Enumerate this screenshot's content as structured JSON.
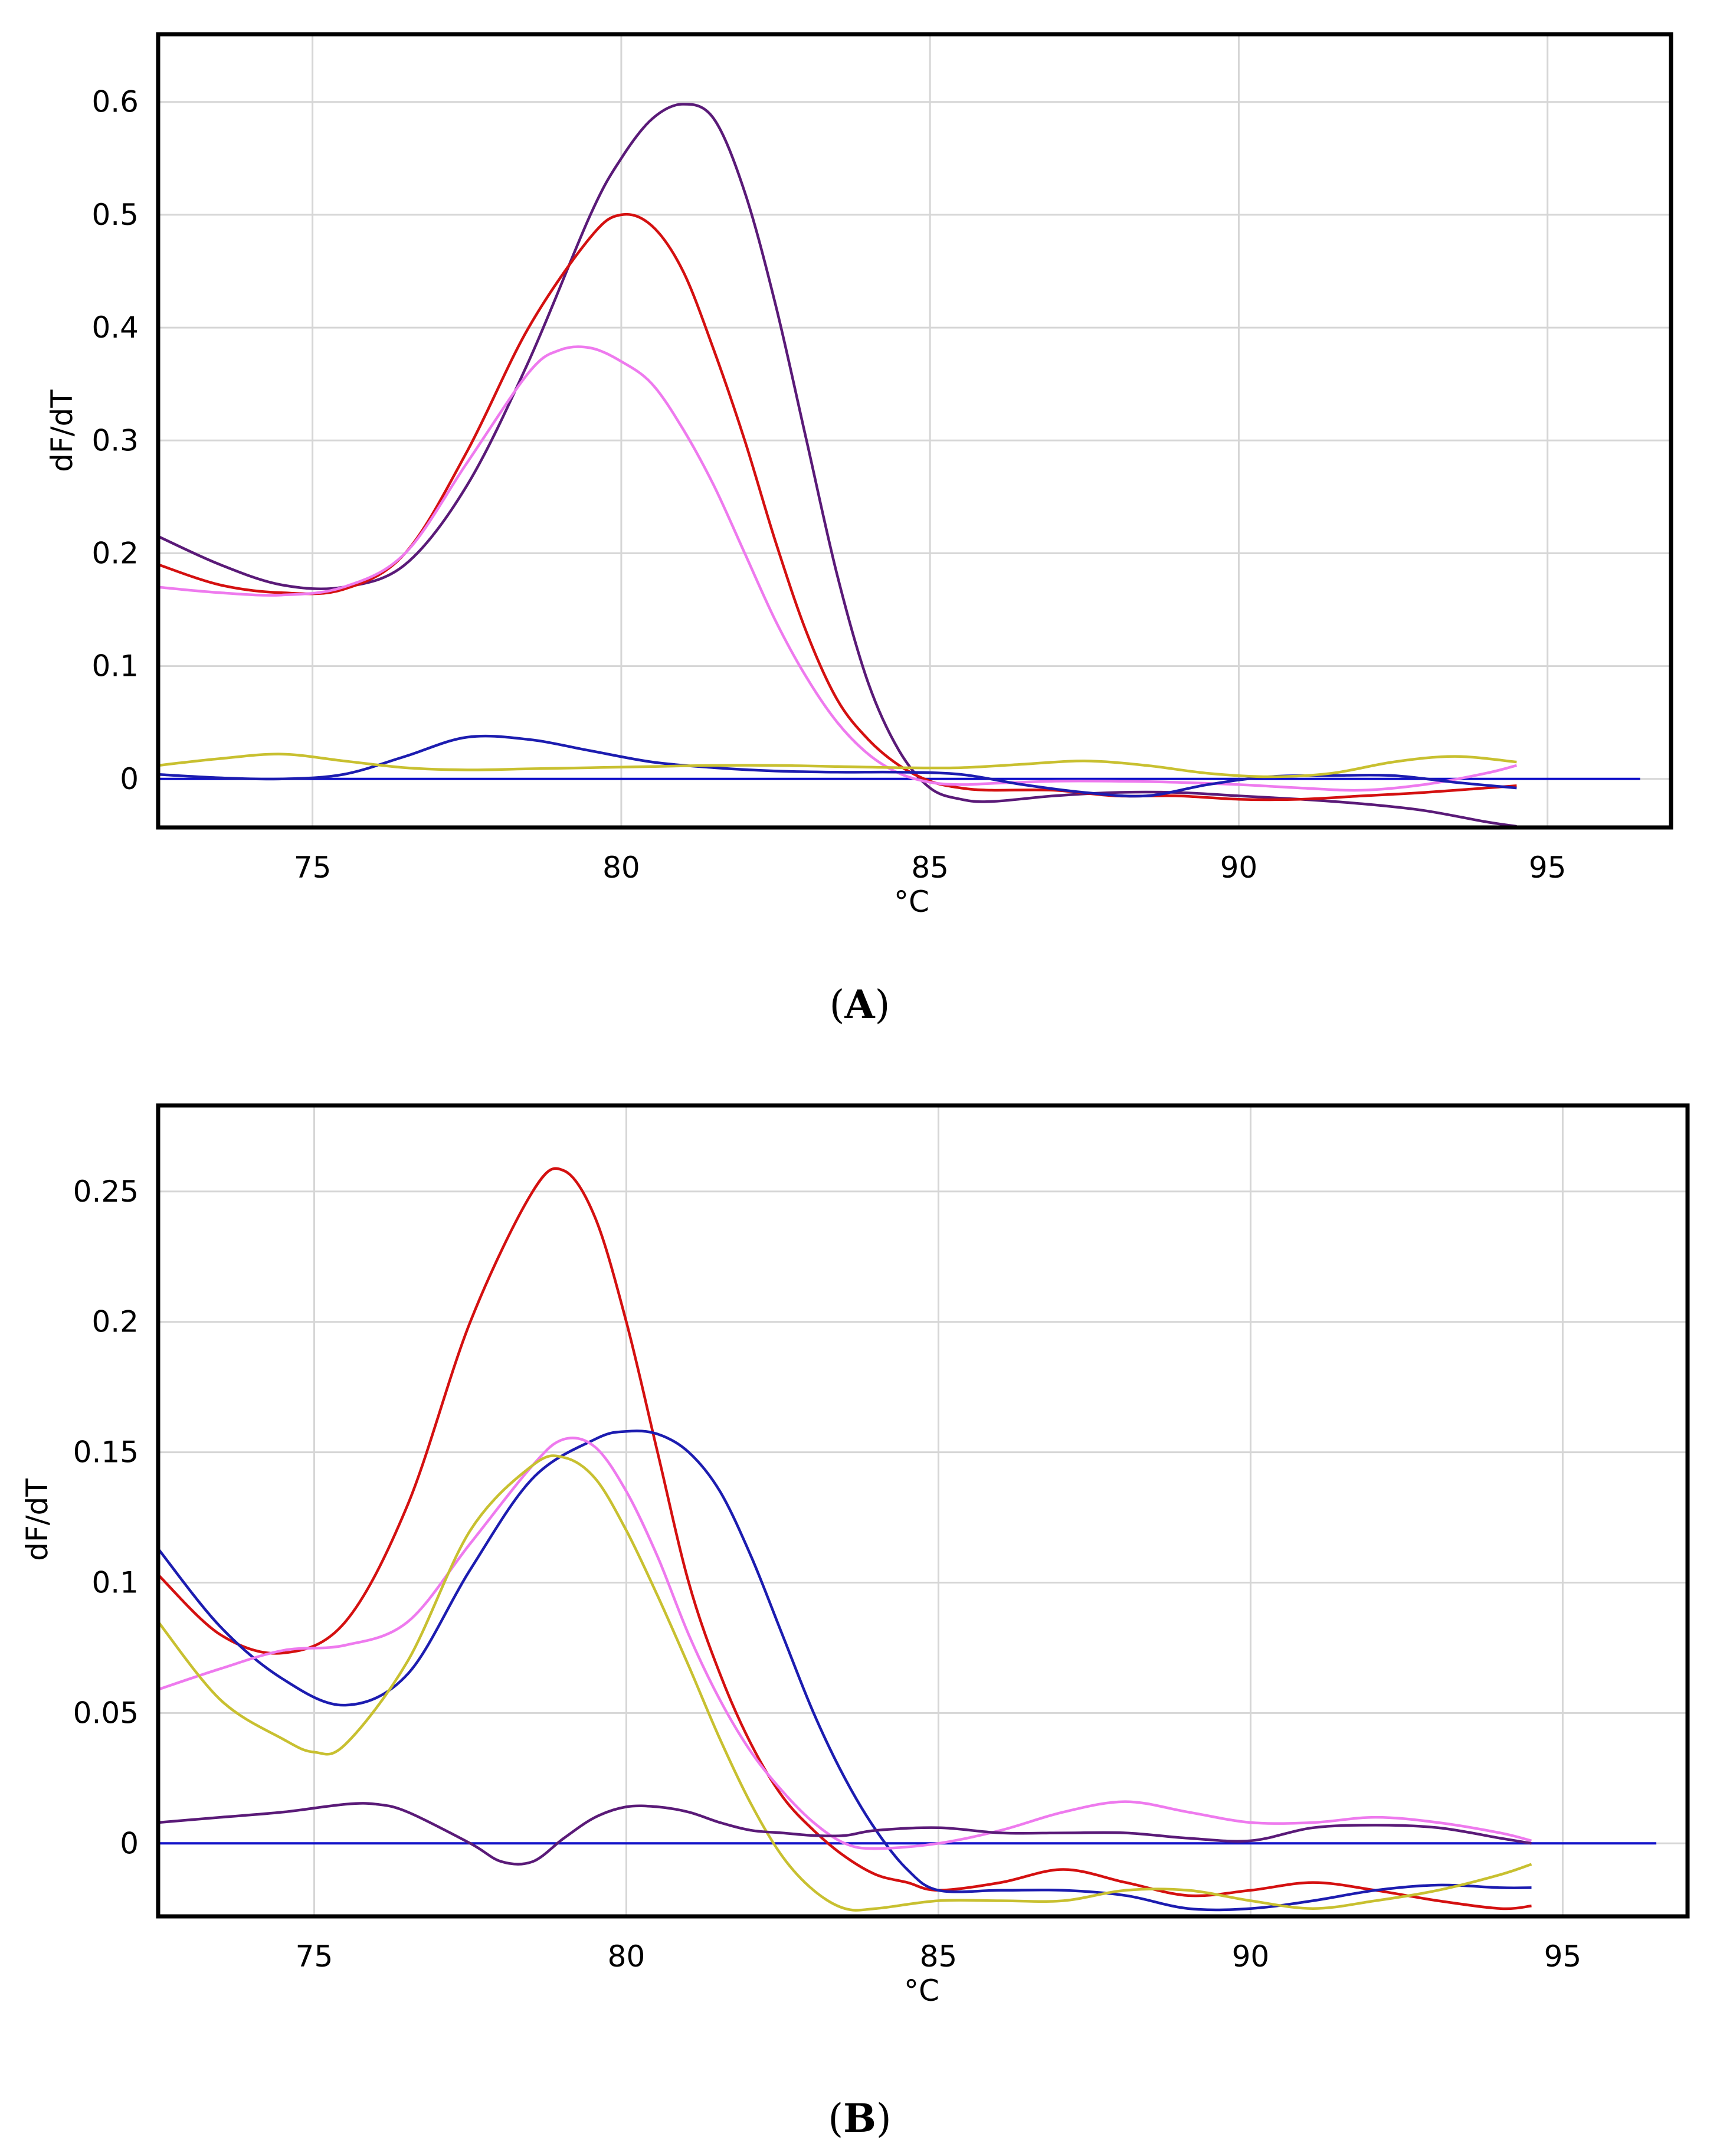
{
  "chart_data": [
    {
      "panel_label": "A",
      "type": "line",
      "xlabel": "°C",
      "ylabel": "dF/dT",
      "xlim": [
        72.5,
        97
      ],
      "ylim": [
        -0.043,
        0.66
      ],
      "grid": true,
      "xticks": [
        75,
        80,
        85,
        90,
        95
      ],
      "xtick_labels": [
        "75",
        "80",
        "85",
        "90",
        "95"
      ],
      "yticks": [
        0,
        0.1,
        0.2,
        0.3,
        0.4,
        0.5,
        0.6
      ],
      "ytick_labels": [
        "0",
        "0.1",
        "0.2",
        "0.3",
        "0.4",
        "0.5",
        "0.6"
      ],
      "baseline": {
        "y": 0,
        "x_range": [
          72.5,
          96.5
        ],
        "color": "#1010c8"
      },
      "series": [
        {
          "name": "purple",
          "color": "#5a1a78",
          "x": [
            72.5,
            73.5,
            74.5,
            75.5,
            76.5,
            77.5,
            78.5,
            79.5,
            80,
            80.5,
            81,
            81.5,
            82,
            82.5,
            83,
            83.5,
            84,
            84.5,
            85,
            85.5,
            86,
            87,
            88,
            89,
            90,
            91,
            92,
            93,
            94,
            94.5
          ],
          "y": [
            0.215,
            0.19,
            0.172,
            0.17,
            0.19,
            0.26,
            0.37,
            0.5,
            0.55,
            0.585,
            0.598,
            0.585,
            0.52,
            0.42,
            0.3,
            0.18,
            0.085,
            0.025,
            -0.008,
            -0.018,
            -0.02,
            -0.015,
            -0.012,
            -0.012,
            -0.015,
            -0.018,
            -0.022,
            -0.028,
            -0.038,
            -0.042
          ]
        },
        {
          "name": "red",
          "color": "#d41010",
          "x": [
            72.5,
            73.5,
            74.5,
            75.5,
            76.5,
            77.5,
            78.5,
            79.5,
            80,
            80.5,
            81,
            81.5,
            82,
            82.5,
            83,
            83.5,
            84,
            84.5,
            85,
            85.5,
            86,
            87,
            88,
            89,
            90,
            91,
            92,
            93,
            94,
            94.5
          ],
          "y": [
            0.19,
            0.172,
            0.165,
            0.168,
            0.2,
            0.29,
            0.4,
            0.48,
            0.5,
            0.49,
            0.45,
            0.38,
            0.3,
            0.21,
            0.13,
            0.07,
            0.035,
            0.012,
            -0.002,
            -0.008,
            -0.01,
            -0.01,
            -0.015,
            -0.015,
            -0.018,
            -0.018,
            -0.015,
            -0.012,
            -0.008,
            -0.006
          ]
        },
        {
          "name": "pink",
          "color": "#ee7aee",
          "x": [
            72.5,
            73.5,
            74.5,
            75.5,
            76.5,
            77.5,
            78.5,
            79,
            79.5,
            80,
            80.5,
            81,
            81.5,
            82,
            82.5,
            83,
            83.5,
            84,
            84.5,
            85,
            85.5,
            86,
            87,
            88,
            89,
            90,
            91,
            92,
            93,
            94,
            94.5
          ],
          "y": [
            0.17,
            0.165,
            0.163,
            0.17,
            0.2,
            0.28,
            0.36,
            0.38,
            0.382,
            0.37,
            0.35,
            0.31,
            0.26,
            0.2,
            0.14,
            0.09,
            0.05,
            0.022,
            0.005,
            -0.003,
            -0.005,
            -0.004,
            -0.002,
            -0.002,
            -0.003,
            -0.005,
            -0.008,
            -0.01,
            -0.005,
            0.005,
            0.012
          ]
        },
        {
          "name": "blue",
          "color": "#1c1cb0",
          "x": [
            72.5,
            73.5,
            74.5,
            75.5,
            76.5,
            77.5,
            78.5,
            79.5,
            80.5,
            81.5,
            82.5,
            83.5,
            84.5,
            85.5,
            86.5,
            87.5,
            88.5,
            89.5,
            90.5,
            91.5,
            92.5,
            93.5,
            94.5
          ],
          "y": [
            0.004,
            0.001,
            0.0,
            0.004,
            0.02,
            0.037,
            0.035,
            0.025,
            0.015,
            0.01,
            0.007,
            0.006,
            0.006,
            0.004,
            -0.005,
            -0.012,
            -0.015,
            -0.005,
            0.002,
            0.003,
            0.003,
            -0.003,
            -0.008
          ]
        },
        {
          "name": "yellow",
          "color": "#c8c030",
          "x": [
            72.5,
            73.5,
            74.5,
            75.5,
            76.5,
            77.5,
            78.5,
            79.5,
            80.5,
            81.5,
            82.5,
            83.5,
            84.5,
            85.5,
            86.5,
            87.5,
            88.5,
            89.5,
            90.5,
            91.5,
            92.5,
            93.5,
            94.5
          ],
          "y": [
            0.012,
            0.018,
            0.022,
            0.016,
            0.01,
            0.008,
            0.009,
            0.01,
            0.011,
            0.012,
            0.012,
            0.011,
            0.01,
            0.01,
            0.013,
            0.016,
            0.012,
            0.005,
            0.002,
            0.005,
            0.015,
            0.02,
            0.015
          ]
        }
      ]
    },
    {
      "panel_label": "B",
      "type": "line",
      "xlabel": "°C",
      "ylabel": "dF/dT",
      "xlim": [
        72.5,
        97
      ],
      "ylim": [
        -0.028,
        0.283
      ],
      "grid": true,
      "xticks": [
        75,
        80,
        85,
        90,
        95
      ],
      "xtick_labels": [
        "75",
        "80",
        "85",
        "90",
        "95"
      ],
      "yticks": [
        0,
        0.05,
        0.1,
        0.15,
        0.2,
        0.25
      ],
      "ytick_labels": [
        "0",
        "0.05",
        "0.1",
        "0.15",
        "0.2",
        "0.25"
      ],
      "baseline": {
        "y": 0,
        "x_range": [
          72.5,
          96.5
        ],
        "color": "#1010c8"
      },
      "series": [
        {
          "name": "red",
          "color": "#d41010",
          "x": [
            72.5,
            73.5,
            74.5,
            75.5,
            76.5,
            77.5,
            78.5,
            79,
            79.5,
            80,
            80.5,
            81,
            81.5,
            82,
            82.5,
            83,
            83.5,
            84,
            84.5,
            85,
            86,
            87,
            88,
            89,
            90,
            91,
            92,
            93,
            94,
            94.5
          ],
          "y": [
            0.103,
            0.08,
            0.073,
            0.085,
            0.13,
            0.2,
            0.25,
            0.258,
            0.24,
            0.2,
            0.15,
            0.1,
            0.065,
            0.038,
            0.018,
            0.005,
            -0.005,
            -0.012,
            -0.015,
            -0.018,
            -0.015,
            -0.01,
            -0.015,
            -0.02,
            -0.018,
            -0.015,
            -0.018,
            -0.022,
            -0.025,
            -0.024
          ]
        },
        {
          "name": "blue",
          "color": "#1c1cb0",
          "x": [
            72.5,
            73.5,
            74.5,
            75.5,
            76.5,
            77.5,
            78.5,
            79.5,
            80,
            80.5,
            81,
            81.5,
            82,
            82.5,
            83,
            83.5,
            84,
            84.5,
            85,
            86,
            87,
            88,
            89,
            90,
            91,
            92,
            93,
            94,
            94.5
          ],
          "y": [
            0.113,
            0.083,
            0.063,
            0.053,
            0.065,
            0.105,
            0.14,
            0.155,
            0.158,
            0.157,
            0.15,
            0.135,
            0.11,
            0.08,
            0.05,
            0.025,
            0.005,
            -0.01,
            -0.018,
            -0.018,
            -0.018,
            -0.02,
            -0.025,
            -0.025,
            -0.022,
            -0.018,
            -0.016,
            -0.017,
            -0.017
          ]
        },
        {
          "name": "pink",
          "color": "#ee7aee",
          "x": [
            72.5,
            73.5,
            74.5,
            75.5,
            76.5,
            77.5,
            78.5,
            79,
            79.5,
            80,
            80.5,
            81,
            81.5,
            82,
            82.5,
            83,
            83.5,
            84,
            85,
            86,
            87,
            88,
            89,
            90,
            91,
            92,
            93,
            94,
            94.5
          ],
          "y": [
            0.059,
            0.067,
            0.074,
            0.076,
            0.085,
            0.115,
            0.145,
            0.155,
            0.152,
            0.135,
            0.11,
            0.08,
            0.055,
            0.035,
            0.02,
            0.008,
            0.0,
            -0.002,
            0.0,
            0.005,
            0.012,
            0.016,
            0.012,
            0.008,
            0.008,
            0.01,
            0.008,
            0.004,
            0.001
          ]
        },
        {
          "name": "yellow",
          "color": "#c8c030",
          "x": [
            72.5,
            73.5,
            74.5,
            75,
            75.5,
            76.5,
            77.5,
            78.5,
            79,
            79.5,
            80,
            80.5,
            81,
            81.5,
            82,
            82.5,
            83,
            83.5,
            84,
            85,
            86,
            87,
            88,
            89,
            90,
            91,
            92,
            93,
            94,
            94.5
          ],
          "y": [
            0.085,
            0.055,
            0.04,
            0.035,
            0.038,
            0.07,
            0.12,
            0.145,
            0.148,
            0.14,
            0.12,
            0.095,
            0.068,
            0.04,
            0.015,
            -0.005,
            -0.018,
            -0.025,
            -0.025,
            -0.022,
            -0.022,
            -0.022,
            -0.018,
            -0.018,
            -0.022,
            -0.025,
            -0.022,
            -0.018,
            -0.012,
            -0.008
          ]
        },
        {
          "name": "purple",
          "color": "#5a1a78",
          "x": [
            72.5,
            73.5,
            74.5,
            75.5,
            76,
            76.5,
            77.5,
            78,
            78.5,
            79,
            79.5,
            80,
            80.5,
            81,
            81.5,
            82,
            82.5,
            83,
            83.5,
            84,
            85,
            86,
            87,
            88,
            89,
            90,
            91,
            92,
            93,
            94,
            94.5
          ],
          "y": [
            0.008,
            0.01,
            0.012,
            0.015,
            0.015,
            0.012,
            0.0,
            -0.007,
            -0.007,
            0.002,
            0.01,
            0.014,
            0.014,
            0.012,
            0.008,
            0.005,
            0.004,
            0.003,
            0.003,
            0.005,
            0.006,
            0.004,
            0.004,
            0.004,
            0.002,
            0.001,
            0.006,
            0.007,
            0.006,
            0.002,
            0.0
          ]
        }
      ]
    }
  ],
  "captions": {
    "a": "A",
    "b": "B"
  }
}
